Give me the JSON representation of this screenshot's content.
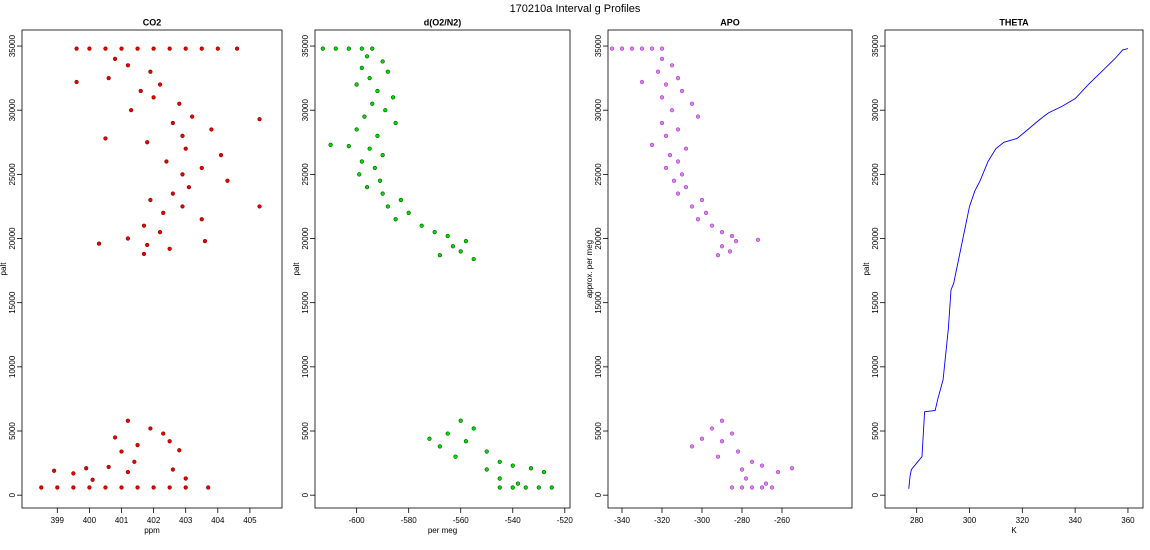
{
  "title": "170210a   Interval g Profiles",
  "chart_data": [
    {
      "type": "scatter",
      "title": "CO2",
      "xlabel": "ppm",
      "ylabel": "palt",
      "color": "#ee0000",
      "edge_color": "#800000",
      "xlim": [
        397.9,
        406.0
      ],
      "ylim": [
        -1000,
        36250
      ],
      "xticks": [
        399,
        400,
        401,
        402,
        403,
        404,
        405
      ],
      "yticks": [
        0,
        5000,
        10000,
        15000,
        20000,
        25000,
        30000,
        35000
      ],
      "x": [
        399.6,
        400.0,
        400.5,
        401.0,
        401.5,
        402.0,
        402.5,
        403.0,
        403.5,
        404.0,
        404.6,
        400.8,
        401.2,
        401.9,
        400.6,
        402.2,
        401.6,
        402.0,
        402.8,
        401.3,
        403.2,
        402.6,
        403.8,
        402.9,
        401.8,
        403.0,
        404.1,
        402.4,
        403.5,
        402.9,
        404.3,
        403.1,
        402.6,
        401.9,
        402.9,
        402.3,
        403.5,
        401.7,
        402.2,
        401.2,
        403.6,
        401.8,
        400.3,
        402.5,
        401.7,
        405.3,
        405.3,
        399.6,
        400.5,
        401.2,
        401.9,
        402.3,
        400.8,
        402.5,
        401.5,
        401.0,
        402.8,
        399.9,
        401.4,
        400.6,
        401.2,
        402.6,
        399.5,
        398.9,
        400.1,
        403.0,
        398.5,
        399.0,
        399.5,
        400.0,
        400.5,
        401.0,
        401.5,
        402.0,
        402.5,
        403.0,
        403.7
      ],
      "y": [
        34800,
        34800,
        34800,
        34800,
        34800,
        34800,
        34800,
        34800,
        34800,
        34800,
        34800,
        34000,
        33500,
        33000,
        32500,
        32000,
        31500,
        31000,
        30500,
        30000,
        29500,
        29000,
        28500,
        28000,
        27500,
        27000,
        26500,
        26000,
        25500,
        25000,
        24500,
        24000,
        23500,
        23000,
        22500,
        22000,
        21500,
        21000,
        20500,
        20000,
        19800,
        19500,
        19600,
        19200,
        18800,
        22500,
        29300,
        32200,
        27800,
        5800,
        5200,
        4800,
        4500,
        4200,
        3900,
        3400,
        3500,
        2100,
        2600,
        2200,
        1800,
        2000,
        1700,
        1900,
        1200,
        1300,
        600,
        600,
        600,
        600,
        600,
        600,
        600,
        600,
        600,
        600,
        600
      ]
    },
    {
      "type": "scatter",
      "title": "d(O2/N2)",
      "xlabel": "per meg",
      "ylabel": "palt",
      "color": "#00e000",
      "edge_color": "#005000",
      "xlim": [
        -616,
        -518
      ],
      "ylim": [
        -1000,
        36250
      ],
      "xticks": [
        -600,
        -580,
        -560,
        -540,
        -520
      ],
      "yticks": [
        0,
        5000,
        10000,
        15000,
        20000,
        25000,
        30000,
        35000
      ],
      "x": [
        -613,
        -608,
        -603,
        -598,
        -594,
        -596,
        -590,
        -598,
        -588,
        -595,
        -600,
        -592,
        -586,
        -594,
        -589,
        -597,
        -585,
        -600,
        -592,
        -610,
        -603,
        -595,
        -590,
        -598,
        -593,
        -599,
        -591,
        -596,
        -590,
        -583,
        -588,
        -580,
        -585,
        -575,
        -570,
        -565,
        -558,
        -563,
        -560,
        -568,
        -555,
        -560,
        -555,
        -565,
        -572,
        -558,
        -568,
        -550,
        -562,
        -545,
        -540,
        -550,
        -533,
        -528,
        -545,
        -538,
        -545,
        -540,
        -535,
        -530,
        -525
      ],
      "y": [
        34800,
        34800,
        34800,
        34800,
        34800,
        34200,
        33800,
        33300,
        33000,
        32500,
        32000,
        31500,
        31000,
        30500,
        30000,
        29500,
        29000,
        28500,
        28000,
        27300,
        27200,
        27000,
        26500,
        26000,
        25500,
        25000,
        24500,
        24000,
        23500,
        23000,
        22500,
        22000,
        21500,
        21000,
        20500,
        20200,
        19800,
        19400,
        19000,
        18700,
        18400,
        5800,
        5200,
        4800,
        4400,
        4200,
        3800,
        3400,
        3000,
        2600,
        2300,
        2000,
        2100,
        1800,
        1300,
        900,
        600,
        600,
        600,
        600,
        600
      ]
    },
    {
      "type": "scatter",
      "title": "APO",
      "ylabel": "approx. per meg",
      "color": "#e080f0",
      "edge_color": "#a040c0",
      "xlim": [
        -347,
        -225
      ],
      "ylim": [
        -1000,
        36250
      ],
      "xticks": [
        -340,
        -320,
        -300,
        -280,
        -260
      ],
      "yticks": [
        0,
        5000,
        10000,
        15000,
        20000,
        25000,
        30000,
        35000
      ],
      "x": [
        -345,
        -340,
        -335,
        -330,
        -325,
        -320,
        -320,
        -315,
        -322,
        -312,
        -330,
        -318,
        -310,
        -320,
        -305,
        -315,
        -302,
        -320,
        -312,
        -318,
        -325,
        -308,
        -316,
        -312,
        -318,
        -310,
        -314,
        -308,
        -312,
        -300,
        -305,
        -298,
        -302,
        -295,
        -290,
        -285,
        -283,
        -272,
        -290,
        -286,
        -292,
        -290,
        -295,
        -285,
        -300,
        -290,
        -305,
        -282,
        -292,
        -275,
        -270,
        -280,
        -255,
        -262,
        -278,
        -268,
        -285,
        -280,
        -275,
        -270,
        -265
      ],
      "y": [
        34800,
        34800,
        34800,
        34800,
        34800,
        34800,
        34000,
        33500,
        33000,
        32500,
        32200,
        32000,
        31500,
        31000,
        30500,
        30000,
        29500,
        29000,
        28500,
        28000,
        27300,
        27000,
        26500,
        26000,
        25500,
        25000,
        24500,
        24000,
        23500,
        23000,
        22500,
        22000,
        21500,
        21000,
        20500,
        20200,
        19800,
        19900,
        19400,
        19000,
        18700,
        5800,
        5200,
        4800,
        4400,
        4200,
        3800,
        3400,
        3000,
        2600,
        2300,
        2000,
        2100,
        1800,
        1300,
        900,
        600,
        600,
        600,
        600,
        600
      ]
    },
    {
      "type": "line",
      "title": "THETA",
      "xlabel": "K",
      "ylabel": "palt",
      "color": "#0000ff",
      "xlim": [
        268,
        365.7
      ],
      "ylim": [
        -1000,
        36250
      ],
      "xticks": [
        280,
        300,
        320,
        340,
        360
      ],
      "yticks": [
        0,
        5000,
        10000,
        15000,
        20000,
        25000,
        30000,
        35000
      ],
      "x": [
        277,
        277.5,
        278,
        280,
        282,
        283,
        287,
        288,
        290,
        292,
        293,
        294,
        296,
        298,
        300,
        302,
        304,
        307,
        310,
        313,
        318,
        321,
        325,
        328,
        330,
        335,
        340,
        345,
        350,
        355,
        358,
        360
      ],
      "y": [
        500,
        1500,
        2000,
        2500,
        3000,
        6500,
        6600,
        7500,
        9000,
        13000,
        16000,
        16500,
        18500,
        20500,
        22500,
        23700,
        24500,
        26000,
        27000,
        27500,
        27800,
        28300,
        29000,
        29500,
        29800,
        30300,
        30900,
        32000,
        33000,
        34000,
        34700,
        34800
      ]
    }
  ]
}
